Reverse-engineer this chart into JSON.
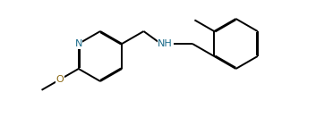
{
  "background_color": "#ffffff",
  "bond_color": "#000000",
  "N_color": "#1a6b8a",
  "O_color": "#8b6914",
  "line_width": 1.4,
  "ring_dbo": 0.018,
  "font_size_N": 8,
  "bl": 0.32,
  "figsize": [
    3.53,
    1.31
  ],
  "dpi": 100,
  "xlim": [
    0.0,
    3.53
  ],
  "ylim": [
    0.0,
    1.31
  ]
}
